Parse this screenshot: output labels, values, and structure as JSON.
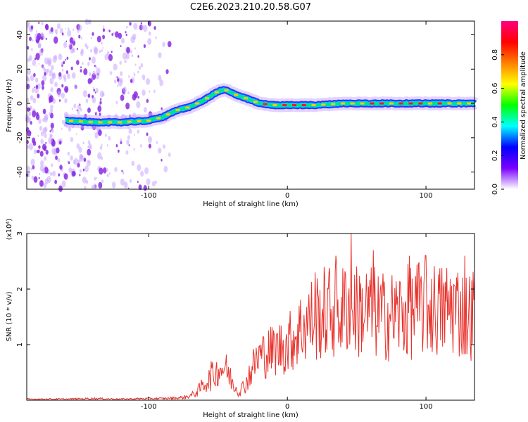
{
  "title": "C2E6.2023.210.20.58.G07",
  "colors": {
    "axis": "#000000",
    "line": "#e8322c",
    "track_low": "#2a33ff",
    "track_mid": "#00e676",
    "track_high": "#ff1a1a",
    "noise": "#9b3cff"
  },
  "chart_data": [
    {
      "type": "heatmap",
      "title": "",
      "xlabel": "Height of straight line (km)",
      "ylabel": "Frequency (Hz)",
      "xlim": [
        -188,
        135
      ],
      "ylim": [
        -50,
        48
      ],
      "xticks": [
        "-100",
        "0",
        "100"
      ],
      "yticks": [
        "-40",
        "-20",
        "0",
        "20",
        "40"
      ],
      "colorbar": {
        "label": "Normalized spectral amplitude",
        "range": [
          0,
          1
        ],
        "ticks": [
          "0.0",
          "0.2",
          "0.4",
          "0.6",
          "0.8"
        ],
        "palette": [
          "#ffffff",
          "#7a00ff",
          "#0000ff",
          "#00ffff",
          "#00ff00",
          "#ffff00",
          "#ff8000",
          "#ff0000",
          "#ff0080"
        ]
      },
      "track": {
        "x": [
          -160,
          -140,
          -120,
          -100,
          -90,
          -80,
          -70,
          -60,
          -50,
          -45,
          -40,
          -30,
          -20,
          -10,
          0,
          20,
          40,
          60,
          80,
          100,
          120,
          135
        ],
        "y": [
          -10,
          -11,
          -11,
          -10,
          -8,
          -4,
          -2,
          2,
          7,
          8,
          6,
          3,
          0,
          -1,
          -1,
          -1,
          0,
          0,
          0,
          0,
          0,
          0
        ]
      },
      "noise_region_x": [
        -188,
        -85
      ]
    },
    {
      "type": "line",
      "title": "",
      "xlabel": "Height of straight line (km)",
      "ylabel": "SNR (10 * v/v)",
      "yscale_label": "(x10⁴)",
      "xlim": [
        -188,
        135
      ],
      "ylim": [
        0,
        3
      ],
      "xticks": [
        "-100",
        "0",
        "100"
      ],
      "yticks": [
        "1",
        "2",
        "3"
      ],
      "x": [
        -188,
        -160,
        -140,
        -120,
        -100,
        -90,
        -80,
        -75,
        -70,
        -65,
        -60,
        -55,
        -50,
        -45,
        -40,
        -35,
        -30,
        -25,
        -20,
        -10,
        0,
        10,
        20,
        30,
        40,
        45,
        50,
        60,
        70,
        80,
        90,
        100,
        110,
        120,
        130,
        135
      ],
      "y": [
        0.02,
        0.02,
        0.03,
        0.02,
        0.03,
        0.03,
        0.04,
        0.05,
        0.08,
        0.15,
        0.3,
        0.4,
        0.55,
        0.6,
        0.35,
        0.15,
        0.3,
        0.6,
        0.8,
        0.9,
        1.0,
        1.3,
        1.5,
        1.6,
        1.6,
        1.8,
        1.6,
        1.6,
        1.5,
        1.55,
        1.6,
        1.7,
        1.6,
        1.7,
        1.5,
        1.6
      ],
      "extremes": [
        [
          -55,
          0.7
        ],
        [
          20,
          2.3
        ],
        [
          35,
          2.6
        ],
        [
          46,
          3.0
        ],
        [
          62,
          2.7
        ],
        [
          88,
          2.6
        ],
        [
          100,
          2.6
        ],
        [
          128,
          2.6
        ]
      ]
    }
  ]
}
